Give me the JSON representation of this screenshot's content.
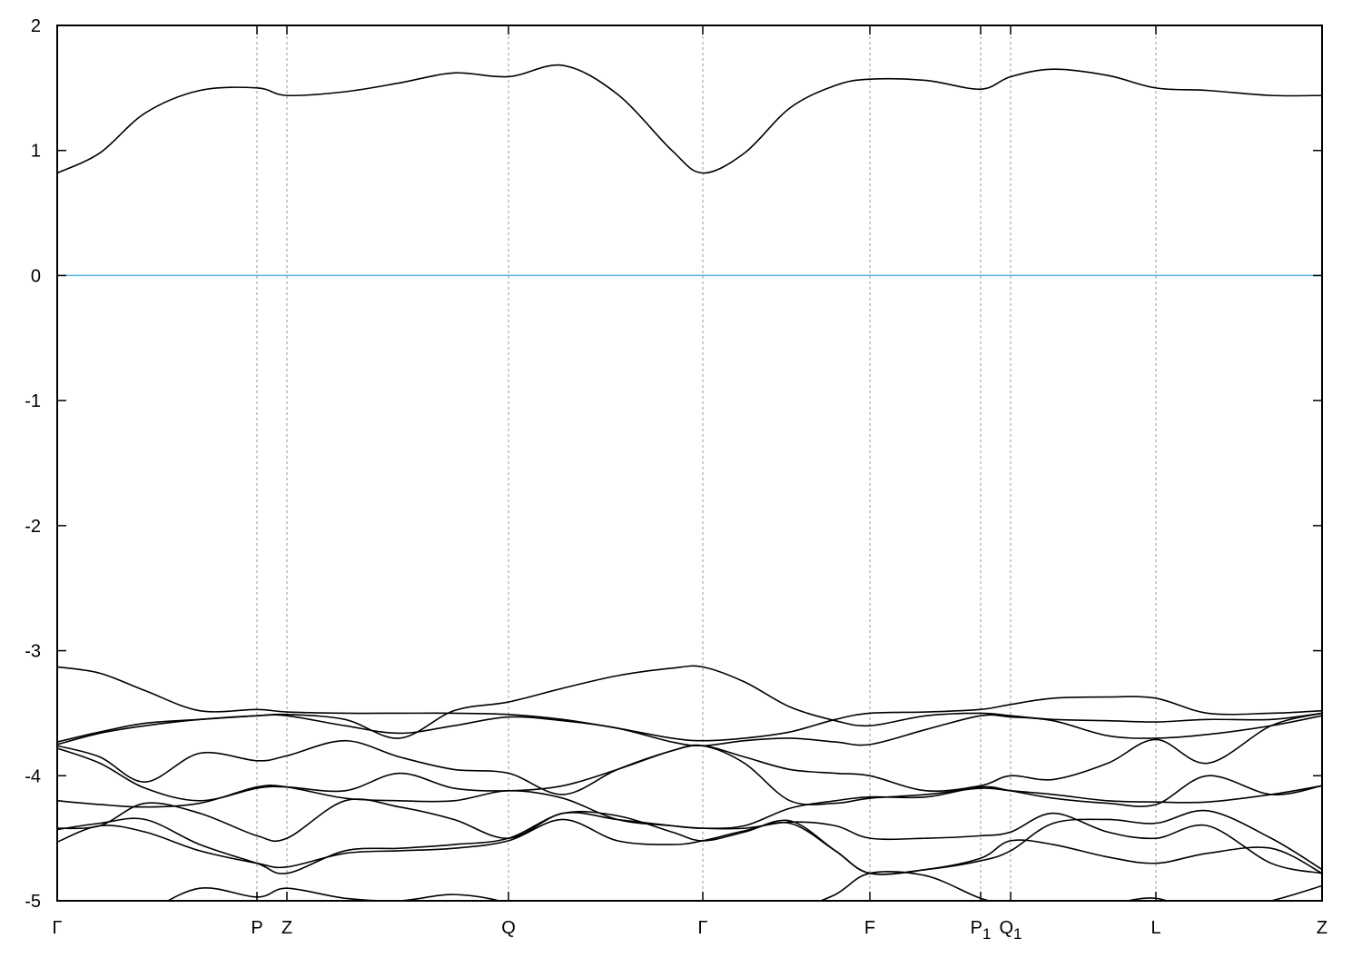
{
  "chart_data": {
    "type": "line",
    "title": "",
    "xlabel": "",
    "ylabel": "",
    "ylim": [
      -5,
      2
    ],
    "yticks": [
      "2",
      "1",
      "0",
      "-1",
      "-2",
      "-3",
      "-4",
      "-5"
    ],
    "ytick_values": [
      2,
      1,
      0,
      -1,
      -2,
      -3,
      -4,
      -5
    ],
    "xlim": [
      0,
      13.93
    ],
    "kpoints": [
      {
        "label": "Γ",
        "sub": "",
        "k": 0
      },
      {
        "label": "P",
        "sub": "",
        "k": 2.2
      },
      {
        "label": "Z",
        "sub": "",
        "k": 2.53
      },
      {
        "label": "Q",
        "sub": "",
        "k": 4.97
      },
      {
        "label": "Γ",
        "sub": "",
        "k": 7.11
      },
      {
        "label": "F",
        "sub": "",
        "k": 8.95
      },
      {
        "label": "P",
        "sub": "1",
        "k": 10.17
      },
      {
        "label": "Q",
        "sub": "1",
        "k": 10.5
      },
      {
        "label": "L",
        "sub": "",
        "k": 12.1
      },
      {
        "label": "Z",
        "sub": "",
        "k": 13.93
      }
    ],
    "fermi_level": 0,
    "fermi_color": "#56b4e9",
    "band_color": "#000000",
    "grid": "vertical dashed lines at k-points",
    "k": [
      0,
      0.47,
      0.97,
      1.57,
      2.2,
      2.53,
      3.17,
      3.77,
      4.37,
      4.97,
      5.57,
      6.17,
      6.77,
      7.11,
      7.57,
      8.07,
      8.57,
      8.95,
      9.57,
      10.17,
      10.5,
      10.97,
      11.57,
      12.1,
      12.67,
      13.37,
      13.93
    ],
    "bands": [
      [
        0.82,
        0.98,
        1.3,
        1.48,
        1.5,
        1.44,
        1.47,
        1.54,
        1.62,
        1.59,
        1.68,
        1.45,
        1.0,
        0.82,
        0.98,
        1.34,
        1.52,
        1.57,
        1.56,
        1.49,
        1.59,
        1.65,
        1.6,
        1.5,
        1.48,
        1.44,
        1.44
      ],
      [
        -3.13,
        -3.18,
        -3.32,
        -3.48,
        -3.47,
        -3.49,
        -3.5,
        -3.5,
        -3.5,
        -3.51,
        -3.55,
        -3.62,
        -3.7,
        -3.72,
        -3.7,
        -3.65,
        -3.55,
        -3.5,
        -3.49,
        -3.47,
        -3.43,
        -3.38,
        -3.37,
        -3.38,
        -3.5,
        -3.5,
        -3.48
      ],
      [
        -3.73,
        -3.65,
        -3.58,
        -3.55,
        -3.52,
        -3.51,
        -3.55,
        -3.7,
        -3.48,
        -3.41,
        -3.3,
        -3.2,
        -3.14,
        -3.13,
        -3.25,
        -3.45,
        -3.56,
        -3.6,
        -3.52,
        -3.5,
        -3.52,
        -3.55,
        -3.56,
        -3.57,
        -3.55,
        -3.55,
        -3.5
      ],
      [
        -3.75,
        -3.66,
        -3.6,
        -3.55,
        -3.52,
        -3.52,
        -3.6,
        -3.66,
        -3.6,
        -3.53,
        -3.56,
        -3.62,
        -3.73,
        -3.76,
        -3.72,
        -3.7,
        -3.73,
        -3.75,
        -3.63,
        -3.52,
        -3.53,
        -3.56,
        -3.68,
        -3.7,
        -3.67,
        -3.6,
        -3.52
      ],
      [
        -3.76,
        -3.85,
        -4.05,
        -3.82,
        -3.88,
        -3.84,
        -3.72,
        -3.85,
        -3.95,
        -3.98,
        -4.15,
        -3.95,
        -3.8,
        -3.76,
        -3.85,
        -3.95,
        -3.98,
        -4.0,
        -4.12,
        -4.08,
        -4.0,
        -4.03,
        -3.9,
        -3.71,
        -3.9,
        -3.6,
        -3.5
      ],
      [
        -3.78,
        -3.9,
        -4.1,
        -4.2,
        -4.1,
        -4.09,
        -4.12,
        -3.98,
        -4.1,
        -4.12,
        -4.08,
        -3.95,
        -3.8,
        -3.76,
        -3.9,
        -4.2,
        -4.22,
        -4.18,
        -4.15,
        -4.1,
        -4.12,
        -4.15,
        -4.2,
        -4.21,
        -4.21,
        -4.15,
        -4.08
      ],
      [
        -4.2,
        -4.23,
        -4.25,
        -4.22,
        -4.09,
        -4.09,
        -4.18,
        -4.2,
        -4.2,
        -4.12,
        -4.18,
        -4.35,
        -4.4,
        -4.42,
        -4.4,
        -4.26,
        -4.2,
        -4.17,
        -4.17,
        -4.09,
        -4.12,
        -4.18,
        -4.22,
        -4.23,
        -4.0,
        -4.15,
        -4.08
      ],
      [
        -4.42,
        -4.4,
        -4.22,
        -4.3,
        -4.48,
        -4.5,
        -4.2,
        -4.25,
        -4.35,
        -4.5,
        -4.3,
        -4.35,
        -4.4,
        -4.42,
        -4.42,
        -4.37,
        -4.4,
        -4.5,
        -4.5,
        -4.48,
        -4.45,
        -4.3,
        -4.45,
        -4.5,
        -4.4,
        -4.7,
        -4.78
      ],
      [
        -4.43,
        -4.38,
        -4.35,
        -4.55,
        -4.7,
        -4.78,
        -4.6,
        -4.58,
        -4.55,
        -4.5,
        -4.3,
        -4.32,
        -4.45,
        -4.52,
        -4.45,
        -4.36,
        -4.6,
        -4.78,
        -4.75,
        -4.68,
        -4.6,
        -4.38,
        -4.35,
        -4.38,
        -4.28,
        -4.5,
        -4.75
      ],
      [
        -4.53,
        -4.4,
        -4.45,
        -4.6,
        -4.7,
        -4.73,
        -4.62,
        -4.6,
        -4.58,
        -4.52,
        -4.35,
        -4.52,
        -4.55,
        -4.52,
        -4.44,
        -4.38,
        -4.6,
        -4.78,
        -4.75,
        -4.66,
        -4.52,
        -4.55,
        -4.65,
        -4.7,
        -4.62,
        -4.58,
        -4.78
      ],
      [
        -5.3,
        -5.3,
        -5.1,
        -4.9,
        -4.97,
        -4.9,
        -4.98,
        -5.0,
        -4.95,
        -5.02,
        -5.2,
        -5.3,
        -5.3,
        -5.3,
        -5.3,
        -5.1,
        -4.95,
        -4.78,
        -4.8,
        -4.98,
        -5.02,
        -5.0,
        -5.02,
        -4.98,
        -5.1,
        -5.0,
        -4.88
      ]
    ]
  }
}
